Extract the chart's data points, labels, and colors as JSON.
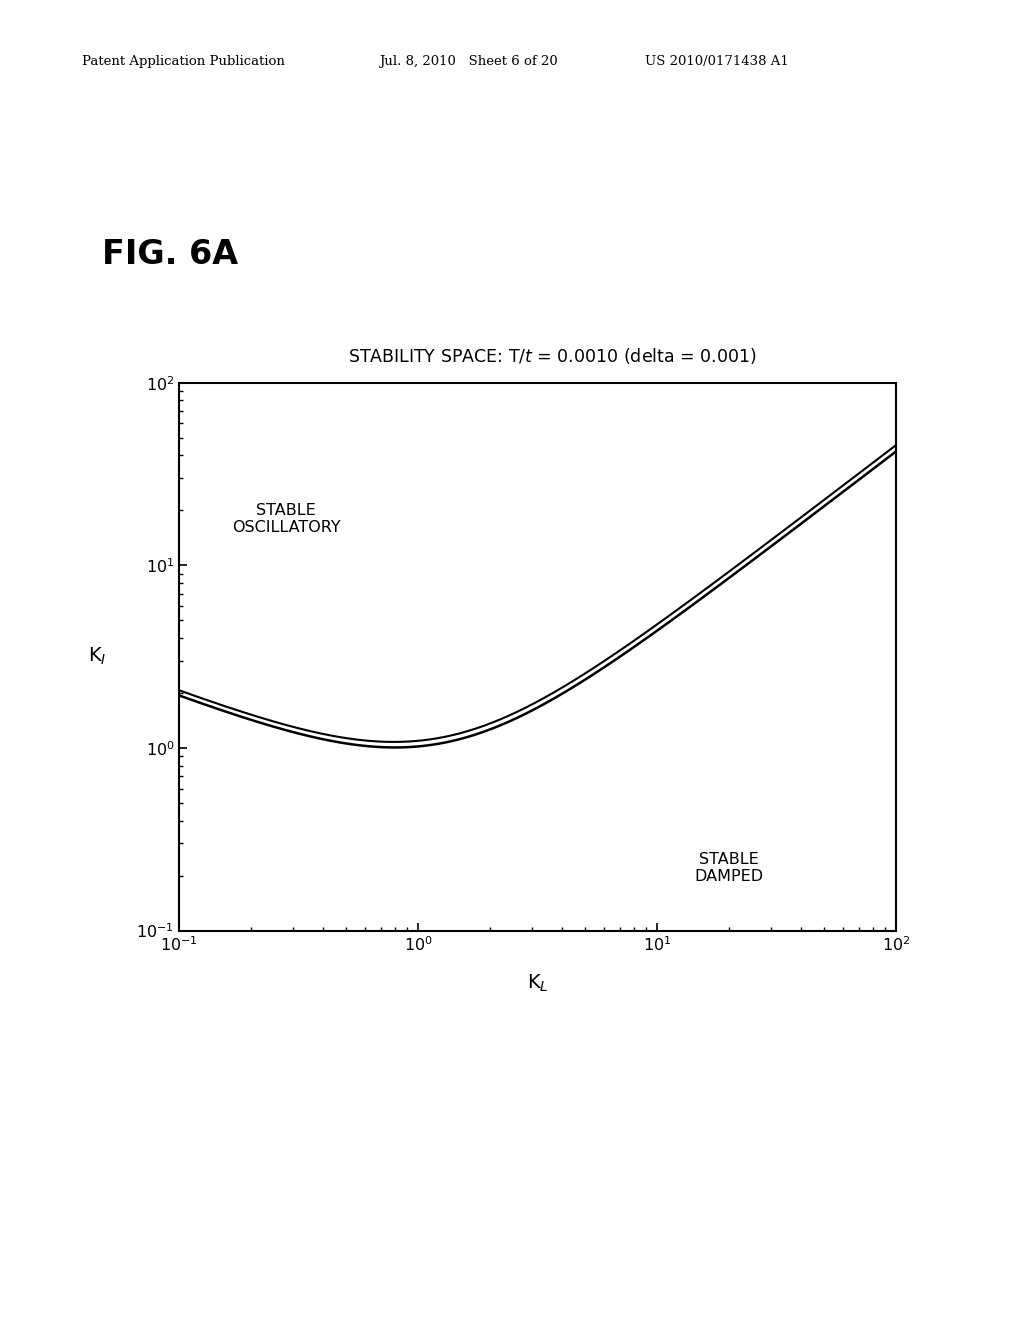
{
  "fig_label": "FIG. 6A",
  "header_left": "Patent Application Publication",
  "header_mid": "Jul. 8, 2010   Sheet 6 of 20",
  "header_right": "US 2010/0171438 A1",
  "title_prefix": "STABILITY SPACE: T/",
  "title_suffix": " = 0.0010 (delta = 0.001)",
  "title_italic": "t",
  "xlabel": "K",
  "ylabel": "K",
  "label_stable_osc": "STABLE\nOSCILLATORY",
  "label_stable_damped": "STABLE\nDAMPED",
  "xlim_log": [
    -1,
    2
  ],
  "ylim_log": [
    -1,
    2
  ],
  "background_color": "#ffffff",
  "line_color": "#000000",
  "C1_lower": 0.6,
  "C2_lower": 0.42,
  "C1_upper": 0.64,
  "C2_upper": 0.455
}
